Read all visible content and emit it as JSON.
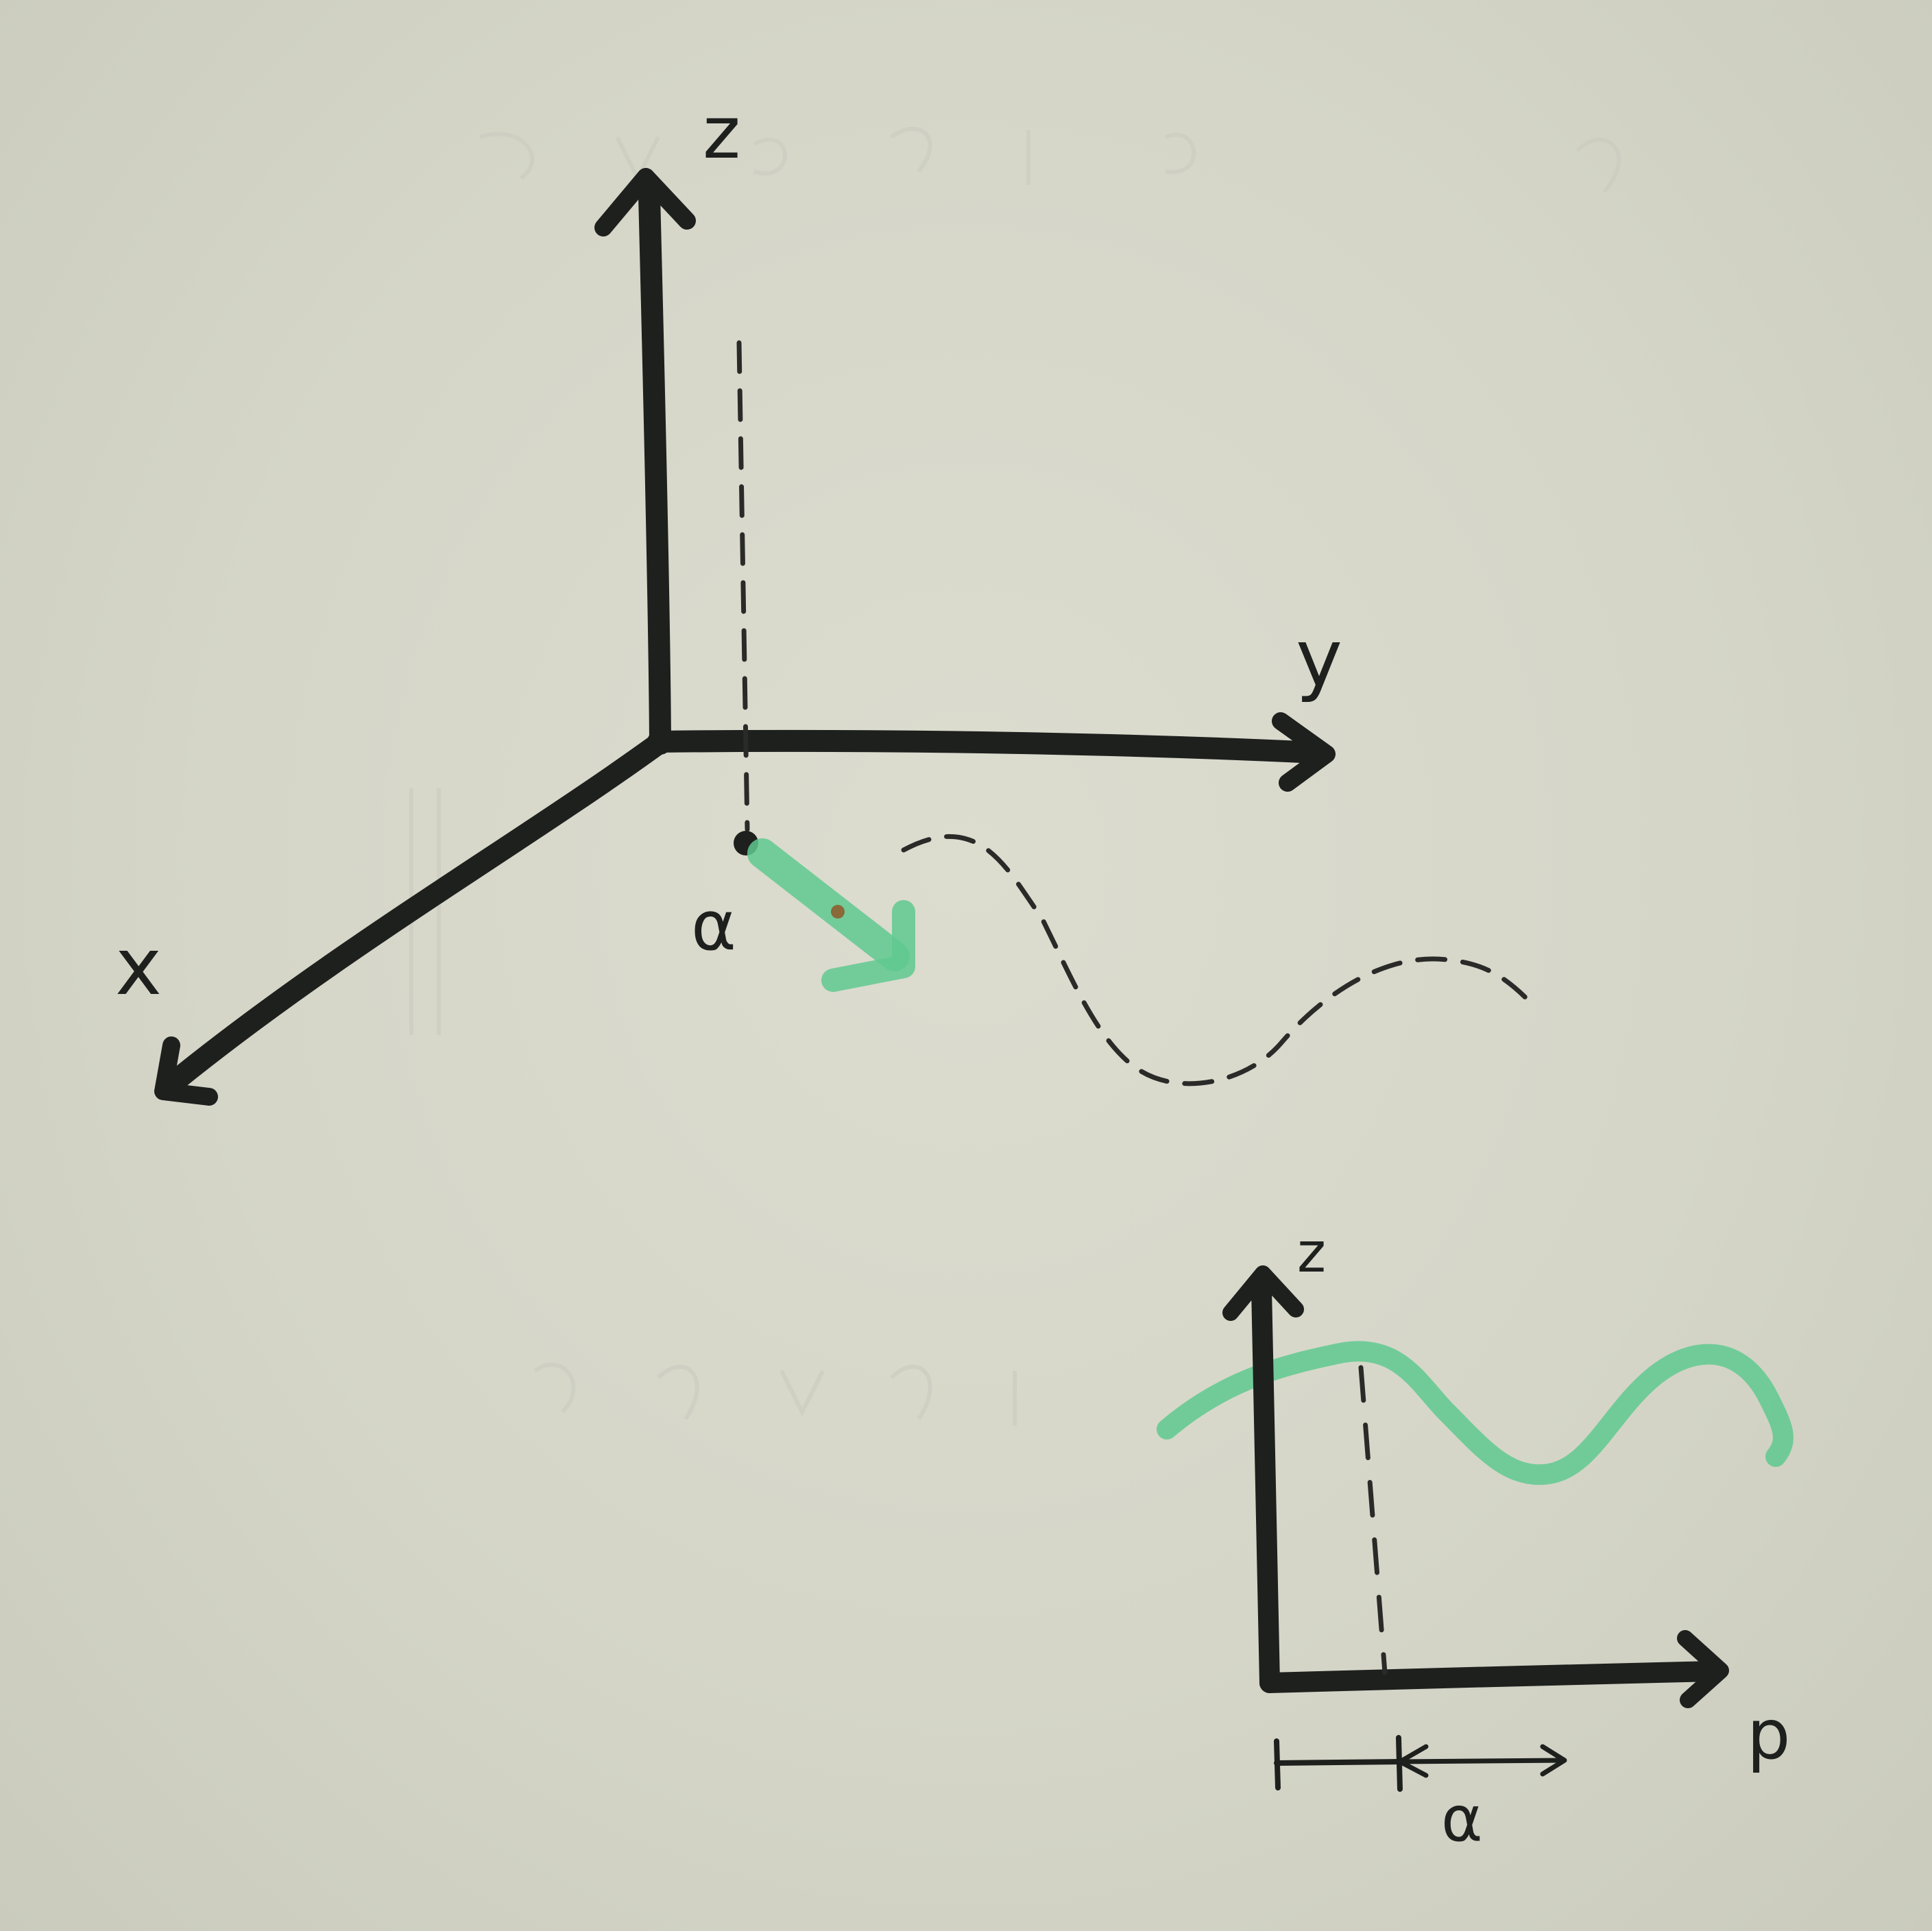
{
  "diagram": {
    "view_3d": {
      "axis_labels": {
        "z": "z",
        "y": "y",
        "x": "x"
      },
      "point_label": "α"
    },
    "view_2d": {
      "axis_labels": {
        "z": "z",
        "p": "p"
      },
      "distance_label": "α"
    },
    "colors": {
      "ink": "#1e201e",
      "highlight_green": "#5fc98f",
      "paper": "#d4d5c7"
    }
  }
}
